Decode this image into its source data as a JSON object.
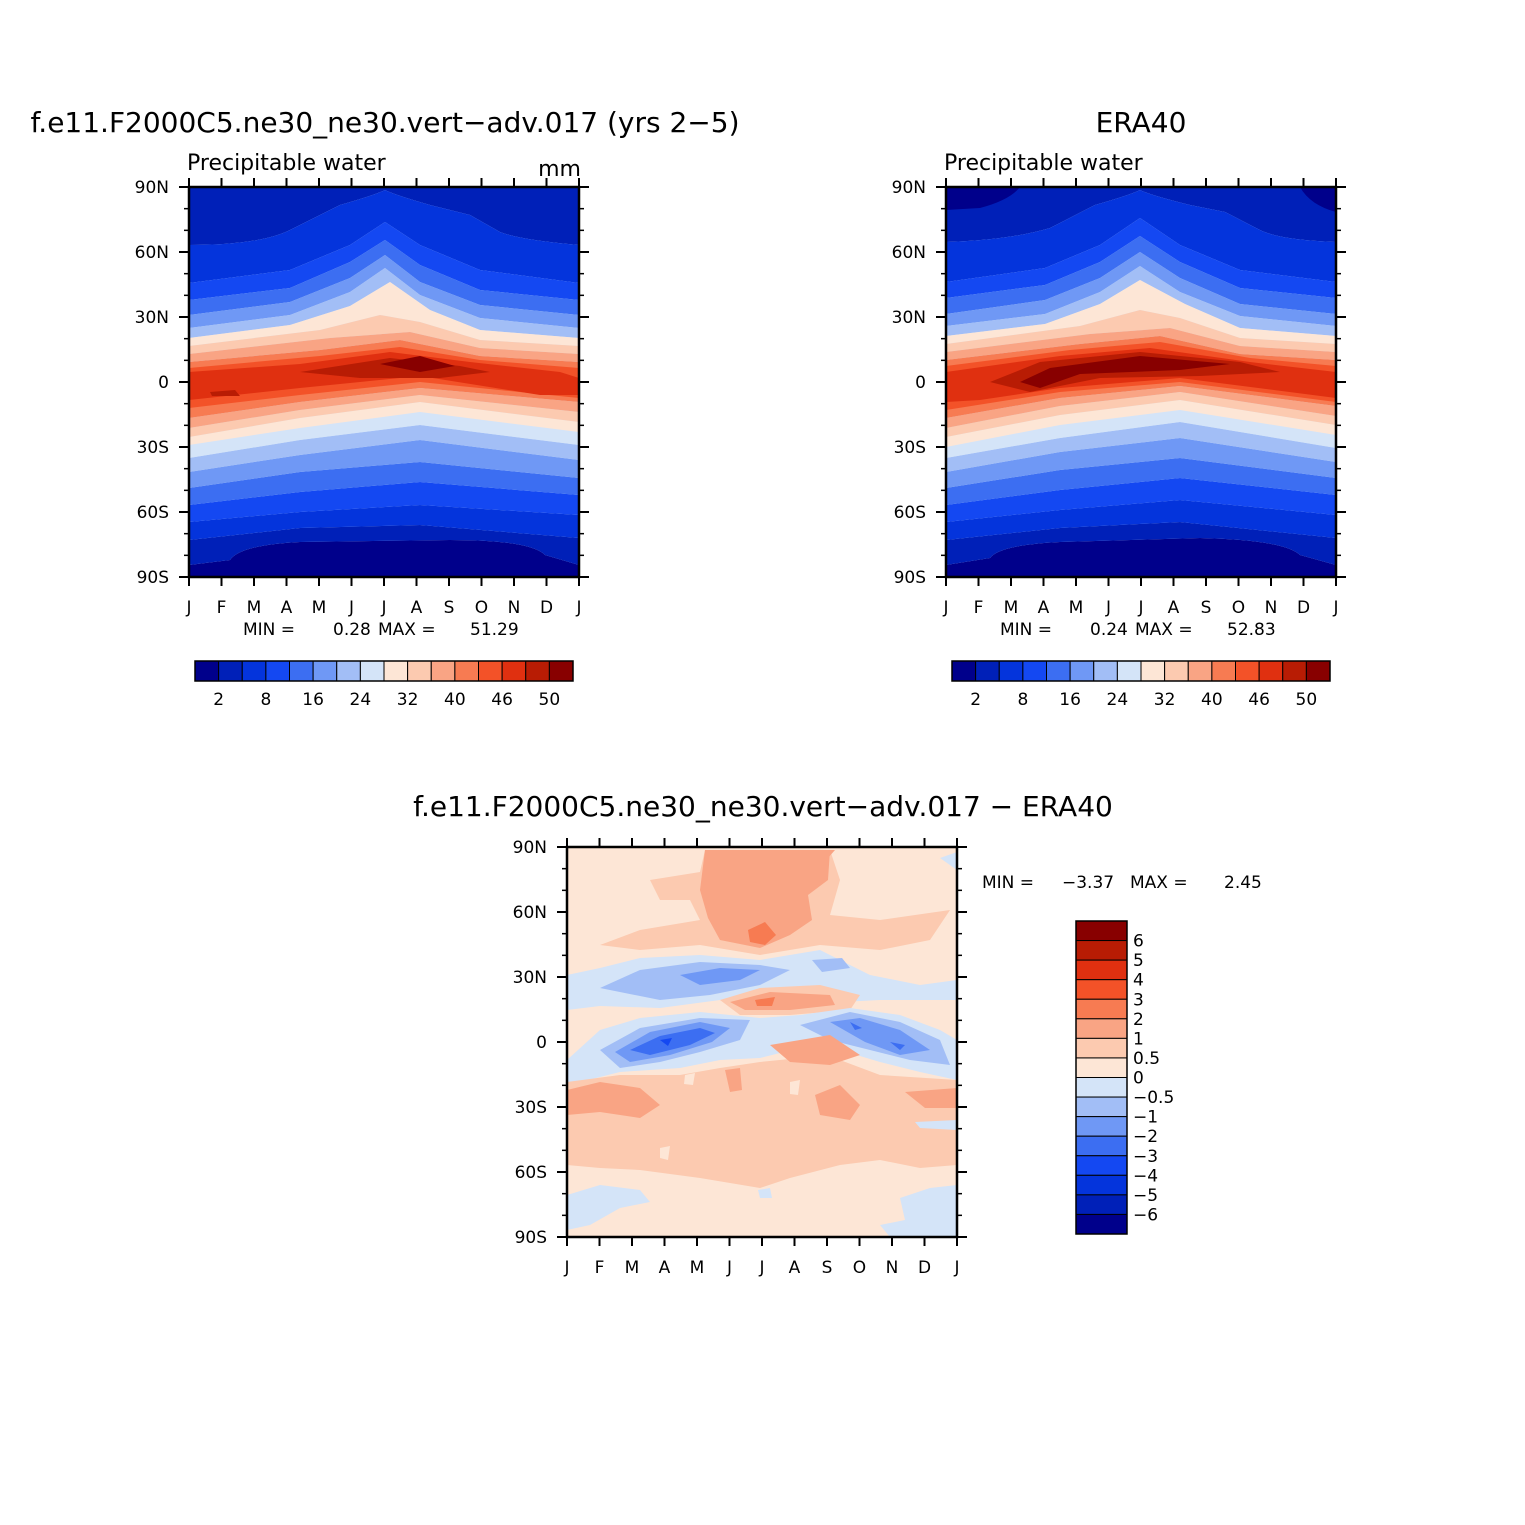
{
  "panels": [
    {
      "id": "model",
      "title": "f.e11.F2000C5.ne30_ne30.vert−adv.017 (yrs 2−5)",
      "subtitle": "Precipitable water",
      "units": "mm",
      "min_label": "MIN =",
      "min_value": "0.28",
      "max_label": "MAX =",
      "max_value": "51.29"
    },
    {
      "id": "era40",
      "title": "ERA40",
      "subtitle": "Precipitable water",
      "units": "",
      "min_label": "MIN =",
      "min_value": "0.24",
      "max_label": "MAX =",
      "max_value": "52.83"
    },
    {
      "id": "diff",
      "title": "f.e11.F2000C5.ne30_ne30.vert−adv.017 − ERA40",
      "subtitle": "",
      "units": "",
      "min_label": "MIN =",
      "min_value": "−3.37",
      "max_label": "MAX =",
      "max_value": "2.45"
    }
  ],
  "colorbars": {
    "pw": {
      "colors": [
        "#00008b",
        "#0020b8",
        "#0434dc",
        "#1448f2",
        "#3c6ef2",
        "#6f98f5",
        "#a2bef6",
        "#d4e4f8",
        "#fde6d6",
        "#fccab0",
        "#f9a484",
        "#f77b52",
        "#f35228",
        "#e03010",
        "#b81c04",
        "#880000"
      ],
      "tick_labels": [
        "2",
        "8",
        "16",
        "24",
        "32",
        "40",
        "46",
        "50"
      ]
    },
    "diff": {
      "colors": [
        "#00008b",
        "#0020b8",
        "#0434dc",
        "#1448f2",
        "#3c6ef2",
        "#6f98f5",
        "#a2bef6",
        "#d4e4f8",
        "#fde6d6",
        "#fccab0",
        "#f9a484",
        "#f77b52",
        "#f35228",
        "#e03010",
        "#b81c04",
        "#880000"
      ],
      "tick_labels": [
        "6",
        "5",
        "4",
        "3",
        "2",
        "1",
        "0.5",
        "0",
        "−0.5",
        "−1",
        "−2",
        "−3",
        "−4",
        "−5",
        "−6"
      ]
    }
  },
  "axes": {
    "x_tick_labels": [
      "J",
      "F",
      "M",
      "A",
      "M",
      "J",
      "J",
      "A",
      "S",
      "O",
      "N",
      "D",
      "J"
    ],
    "y_tick_labels": [
      "90N",
      "60N",
      "30N",
      "0",
      "30S",
      "60S",
      "90S"
    ]
  },
  "chart_data": [
    {
      "type": "heatmap",
      "title": "f.e11.F2000C5.ne30_ne30.vert−adv.017 (yrs 2−5)",
      "subtitle": "Precipitable water",
      "units": "mm",
      "x": [
        "J",
        "F",
        "M",
        "A",
        "M",
        "J",
        "J",
        "A",
        "S",
        "O",
        "N",
        "D",
        "J"
      ],
      "y": [
        "90N",
        "60N",
        "30N",
        "0",
        "30S",
        "60S",
        "90S"
      ],
      "min": 0.28,
      "max": 51.29,
      "contour_levels": [
        2,
        5,
        8,
        12,
        16,
        20,
        24,
        28,
        32,
        36,
        40,
        43,
        46,
        48,
        50
      ],
      "values_note_units": "mm",
      "values": [
        [
          2,
          2,
          3,
          4,
          6,
          9,
          12,
          12,
          8,
          5,
          3,
          2,
          2
        ],
        [
          7,
          7,
          8,
          10,
          13,
          17,
          21,
          20,
          16,
          11,
          8,
          7,
          7
        ],
        [
          16,
          16,
          17,
          20,
          24,
          29,
          34,
          33,
          27,
          21,
          18,
          16,
          16
        ],
        [
          44,
          43,
          43,
          45,
          47,
          49,
          51,
          50,
          48,
          46,
          45,
          44,
          44
        ],
        [
          38,
          37,
          36,
          34,
          31,
          29,
          28,
          29,
          30,
          32,
          34,
          36,
          38
        ],
        [
          12,
          12,
          11,
          10,
          9,
          8,
          8,
          8,
          9,
          10,
          11,
          12,
          12
        ],
        [
          1,
          1,
          1,
          1,
          1,
          1,
          1,
          1,
          1,
          1,
          1,
          1,
          1
        ]
      ]
    },
    {
      "type": "heatmap",
      "title": "ERA40",
      "subtitle": "Precipitable water",
      "x": [
        "J",
        "F",
        "M",
        "A",
        "M",
        "J",
        "J",
        "A",
        "S",
        "O",
        "N",
        "D",
        "J"
      ],
      "y": [
        "90N",
        "60N",
        "30N",
        "0",
        "30S",
        "60S",
        "90S"
      ],
      "min": 0.24,
      "max": 52.83,
      "contour_levels": [
        2,
        5,
        8,
        12,
        16,
        20,
        24,
        28,
        32,
        36,
        40,
        43,
        46,
        48,
        50
      ],
      "values": [
        [
          1,
          2,
          3,
          4,
          6,
          9,
          12,
          12,
          8,
          5,
          3,
          2,
          1
        ],
        [
          6,
          7,
          8,
          10,
          13,
          17,
          22,
          21,
          16,
          11,
          8,
          6,
          6
        ],
        [
          16,
          16,
          17,
          20,
          24,
          29,
          34,
          33,
          28,
          22,
          18,
          16,
          16
        ],
        [
          46,
          45,
          46,
          48,
          50,
          51,
          52,
          52,
          51,
          50,
          48,
          47,
          46
        ],
        [
          38,
          37,
          36,
          34,
          31,
          29,
          27,
          28,
          29,
          31,
          34,
          36,
          38
        ],
        [
          11,
          11,
          10,
          9,
          8,
          7,
          7,
          7,
          8,
          9,
          10,
          11,
          11
        ],
        [
          1,
          1,
          1,
          1,
          1,
          1,
          1,
          1,
          1,
          1,
          1,
          1,
          1
        ]
      ]
    },
    {
      "type": "heatmap",
      "title": "f.e11.F2000C5.ne30_ne30.vert−adv.017 − ERA40",
      "x": [
        "J",
        "F",
        "M",
        "A",
        "M",
        "J",
        "J",
        "A",
        "S",
        "O",
        "N",
        "D",
        "J"
      ],
      "y": [
        "90N",
        "60N",
        "30N",
        "0",
        "30S",
        "60S",
        "90S"
      ],
      "min": -3.37,
      "max": 2.45,
      "contour_levels": [
        -6,
        -5,
        -4,
        -3,
        -2,
        -1,
        -0.5,
        0,
        0.5,
        1,
        2,
        3,
        4,
        5,
        6
      ],
      "values": [
        [
          0.3,
          0.4,
          0.5,
          0.5,
          0.6,
          1.2,
          1.5,
          1.3,
          1.0,
          0.8,
          0.3,
          0.3,
          0.3
        ],
        [
          0.3,
          0.4,
          0.6,
          0.7,
          0.8,
          1.5,
          2.1,
          1.4,
          0.9,
          0.6,
          0.5,
          0.3,
          0.3
        ],
        [
          -0.4,
          -0.6,
          -1.2,
          -1.4,
          -1.3,
          -0.8,
          1.5,
          1.2,
          0.5,
          -0.2,
          -0.5,
          -0.6,
          -0.4
        ],
        [
          -0.8,
          -1.8,
          -2.7,
          -3.2,
          -2.5,
          -0.5,
          0.8,
          1.0,
          -0.3,
          -1.5,
          -2.5,
          -2.0,
          -0.8
        ],
        [
          1.2,
          1.4,
          0.9,
          0.7,
          0.7,
          0.6,
          0.6,
          0.5,
          0.7,
          1.0,
          0.9,
          1.0,
          1.2
        ],
        [
          0.4,
          0.5,
          0.6,
          0.6,
          0.7,
          0.7,
          0.8,
          0.8,
          0.6,
          0.6,
          0.5,
          0.7,
          0.4
        ],
        [
          0.2,
          -0.2,
          0.2,
          0.2,
          0.3,
          0.3,
          0.2,
          0.2,
          0.3,
          0.3,
          0.1,
          -0.3,
          -0.3
        ]
      ]
    }
  ]
}
